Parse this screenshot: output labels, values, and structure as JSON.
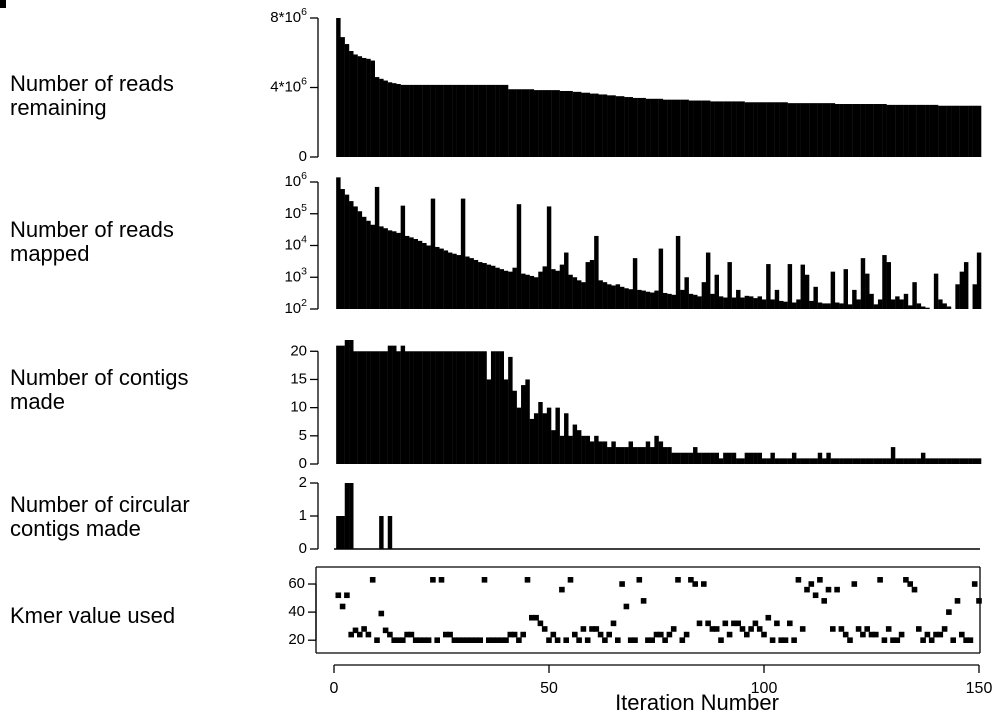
{
  "panel_label": "A",
  "colors": {
    "bars": "#000000",
    "axes": "#000000",
    "background": "#ffffff"
  },
  "chart_data": [
    {
      "type": "bar",
      "row_label": "Number of reads\nremaining",
      "ylim": [
        0,
        8000000
      ],
      "ytick_values": [
        0,
        4000000,
        8000000
      ],
      "ytick_labels": [
        {
          "base": "0",
          "exp": ""
        },
        {
          "base": "4*10",
          "exp": "6"
        },
        {
          "base": "8*10",
          "exp": "6"
        }
      ],
      "x_start": 1,
      "values": [
        8000000,
        6900000,
        6500000,
        6100000,
        5900000,
        5800000,
        5700000,
        5650000,
        5550000,
        4600000,
        4500000,
        4400000,
        4300000,
        4250000,
        4200000,
        4150000,
        4150000,
        4150000,
        4150000,
        4150000,
        4150000,
        4150000,
        4150000,
        4150000,
        4150000,
        4150000,
        4150000,
        4150000,
        4150000,
        4150000,
        4150000,
        4150000,
        4150000,
        4150000,
        4150000,
        4150000,
        4150000,
        4150000,
        4150000,
        4150000,
        3900000,
        3900000,
        3900000,
        3900000,
        3900000,
        3900000,
        3850000,
        3850000,
        3850000,
        3850000,
        3850000,
        3850000,
        3800000,
        3800000,
        3800000,
        3750000,
        3750000,
        3700000,
        3700000,
        3650000,
        3650000,
        3600000,
        3600000,
        3550000,
        3550000,
        3500000,
        3500000,
        3450000,
        3450000,
        3400000,
        3400000,
        3400000,
        3350000,
        3350000,
        3350000,
        3350000,
        3300000,
        3300000,
        3300000,
        3300000,
        3300000,
        3300000,
        3250000,
        3250000,
        3250000,
        3250000,
        3250000,
        3200000,
        3200000,
        3200000,
        3200000,
        3200000,
        3200000,
        3200000,
        3200000,
        3150000,
        3150000,
        3150000,
        3150000,
        3150000,
        3150000,
        3150000,
        3150000,
        3150000,
        3150000,
        3100000,
        3100000,
        3100000,
        3100000,
        3100000,
        3100000,
        3100000,
        3100000,
        3100000,
        3100000,
        3100000,
        3050000,
        3050000,
        3050000,
        3050000,
        3050000,
        3050000,
        3050000,
        3050000,
        3050000,
        3050000,
        3050000,
        3050000,
        3000000,
        3000000,
        3000000,
        3000000,
        3000000,
        3000000,
        3000000,
        3000000,
        3000000,
        3000000,
        3000000,
        3000000,
        2950000,
        2950000,
        2950000,
        2950000,
        2950000,
        2950000,
        2950000,
        2950000,
        2950000,
        2950000
      ]
    },
    {
      "type": "bar",
      "row_label": "Number of reads\nmapped",
      "yscale": "log",
      "ylim": [
        100,
        1000000
      ],
      "ytick_values": [
        100,
        1000,
        10000,
        100000,
        1000000
      ],
      "ytick_labels": [
        {
          "base": "10",
          "exp": "2"
        },
        {
          "base": "10",
          "exp": "3"
        },
        {
          "base": "10",
          "exp": "4"
        },
        {
          "base": "10",
          "exp": "5"
        },
        {
          "base": "10",
          "exp": "6"
        }
      ],
      "x_start": 1,
      "values": [
        1400000,
        600000,
        400000,
        250000,
        170000,
        120000,
        80000,
        60000,
        45000,
        700000,
        40000,
        35000,
        30000,
        28000,
        25000,
        180000,
        20000,
        18000,
        16000,
        14000,
        12000,
        10000,
        300000,
        9000,
        8000,
        7000,
        6000,
        5500,
        5000,
        300000,
        4500,
        4000,
        3500,
        3000,
        2800,
        2500,
        2300,
        2000,
        1800,
        1600,
        1500,
        2000,
        200000,
        1300,
        1200,
        1100,
        1000,
        1500,
        2200,
        170000,
        1800,
        1600,
        2500,
        6000,
        1200,
        1000,
        800,
        700,
        3000,
        3500,
        20000,
        800,
        700,
        600,
        550,
        600,
        500,
        450,
        420,
        4000,
        400,
        380,
        350,
        330,
        380,
        8000,
        320,
        300,
        280,
        20000,
        400,
        1000,
        300,
        280,
        250,
        700,
        6000,
        300,
        1200,
        250,
        230,
        3000,
        230,
        400,
        230,
        260,
        250,
        220,
        250,
        200,
        2600,
        200,
        400,
        180,
        170,
        2600,
        160,
        200,
        2500,
        1200,
        180,
        500,
        160,
        150,
        150,
        1500,
        160,
        150,
        1800,
        140,
        400,
        200,
        4000,
        1300,
        300,
        140,
        200,
        5000,
        3000,
        200,
        250,
        200,
        300,
        130,
        700,
        150,
        120,
        110,
        100,
        1300,
        200,
        150,
        120,
        100,
        600,
        1500,
        3000,
        100,
        600,
        6000
      ]
    },
    {
      "type": "bar",
      "row_label": "Number of contigs\nmade",
      "ylim": [
        0,
        22
      ],
      "ytick_values": [
        0,
        5,
        10,
        15,
        20
      ],
      "ytick_labels": [
        {
          "base": "0",
          "exp": ""
        },
        {
          "base": "5",
          "exp": ""
        },
        {
          "base": "10",
          "exp": ""
        },
        {
          "base": "15",
          "exp": ""
        },
        {
          "base": "20",
          "exp": ""
        }
      ],
      "x_start": 1,
      "values": [
        21,
        21,
        22,
        22,
        20,
        20,
        20,
        20,
        20,
        20,
        20,
        20,
        21,
        21,
        20,
        21,
        20,
        20,
        20,
        20,
        20,
        20,
        20,
        20,
        20,
        20,
        20,
        20,
        20,
        20,
        20,
        20,
        20,
        20,
        20,
        15,
        20,
        20,
        20,
        15,
        19,
        13,
        10,
        14,
        15,
        8,
        9,
        11,
        9,
        10,
        6,
        10,
        5,
        9,
        5,
        7,
        6,
        5,
        5,
        4,
        5,
        4,
        4,
        3,
        4,
        3,
        3,
        3,
        4,
        3,
        3,
        3,
        4,
        3,
        5,
        4,
        3,
        3,
        2,
        2,
        2,
        2,
        2,
        3,
        2,
        2,
        2,
        2,
        2,
        1,
        2,
        2,
        2,
        1,
        1,
        2,
        2,
        2,
        2,
        1,
        1,
        2,
        1,
        1,
        1,
        1,
        2,
        1,
        1,
        1,
        1,
        1,
        2,
        1,
        2,
        1,
        1,
        1,
        1,
        1,
        1,
        1,
        1,
        1,
        1,
        1,
        1,
        1,
        1,
        3,
        1,
        1,
        1,
        1,
        1,
        1,
        2,
        1,
        1,
        1,
        1,
        1,
        1,
        1,
        1,
        1,
        1,
        1,
        1,
        1
      ]
    },
    {
      "type": "bar",
      "row_label": "Number of circular\ncontigs made",
      "ylim": [
        0,
        2
      ],
      "ytick_values": [
        0,
        1,
        2
      ],
      "ytick_labels": [
        {
          "base": "0",
          "exp": ""
        },
        {
          "base": "1",
          "exp": ""
        },
        {
          "base": "2",
          "exp": ""
        }
      ],
      "x_start": 1,
      "values": [
        1,
        1,
        2,
        2,
        0,
        0,
        0,
        0,
        0,
        0,
        1,
        0,
        1,
        0,
        0,
        0,
        0,
        0,
        0,
        0,
        0,
        0,
        0,
        0,
        0,
        0,
        0,
        0,
        0,
        0,
        0,
        0,
        0,
        0,
        0,
        0,
        0,
        0,
        0,
        0,
        0,
        0,
        0,
        0,
        0,
        0,
        0,
        0,
        0,
        0,
        0,
        0,
        0,
        0,
        0,
        0,
        0,
        0,
        0,
        0,
        0,
        0,
        0,
        0,
        0,
        0,
        0,
        0,
        0,
        0,
        0,
        0,
        0,
        0,
        0,
        0,
        0,
        0,
        0,
        0,
        0,
        0,
        0,
        0,
        0,
        0,
        0,
        0,
        0,
        0,
        0,
        0,
        0,
        0,
        0,
        0,
        0,
        0,
        0,
        0,
        0,
        0,
        0,
        0,
        0,
        0,
        0,
        0,
        0,
        0,
        0,
        0,
        0,
        0,
        0,
        0,
        0,
        0,
        0,
        0,
        0,
        0,
        0,
        0,
        0,
        0,
        0,
        0,
        0,
        0,
        0,
        0,
        0,
        0,
        0,
        0,
        0,
        0,
        0,
        0,
        0,
        0,
        0,
        0,
        0,
        0,
        0,
        0,
        0,
        0
      ]
    },
    {
      "type": "scatter",
      "row_label": "Kmer value used",
      "ylim": [
        18,
        65
      ],
      "ytick_values": [
        20,
        40,
        60
      ],
      "ytick_labels": [
        {
          "base": "20",
          "exp": ""
        },
        {
          "base": "40",
          "exp": ""
        },
        {
          "base": "60",
          "exp": ""
        }
      ],
      "xlim": [
        0,
        150
      ],
      "xtick_values": [
        0,
        50,
        100,
        150
      ],
      "xtick_labels": [
        "0",
        "50",
        "100",
        "150"
      ],
      "xlabel": "Iteration Number",
      "x_start": 1,
      "values": [
        52,
        44,
        52,
        24,
        27,
        24,
        28,
        24,
        63,
        20,
        39,
        27,
        24,
        20,
        20,
        20,
        24,
        24,
        20,
        20,
        20,
        20,
        63,
        20,
        63,
        24,
        24,
        20,
        20,
        20,
        20,
        20,
        20,
        20,
        63,
        20,
        20,
        20,
        20,
        20,
        24,
        24,
        20,
        24,
        63,
        36,
        36,
        32,
        28,
        20,
        24,
        20,
        56,
        20,
        63,
        24,
        20,
        28,
        20,
        28,
        28,
        24,
        20,
        24,
        32,
        20,
        60,
        44,
        20,
        20,
        63,
        48,
        20,
        20,
        24,
        24,
        20,
        24,
        28,
        63,
        20,
        24,
        63,
        60,
        32,
        60,
        32,
        28,
        28,
        20,
        32,
        24,
        32,
        32,
        28,
        24,
        28,
        32,
        28,
        24,
        36,
        20,
        32,
        20,
        20,
        32,
        20,
        63,
        28,
        56,
        60,
        52,
        63,
        48,
        56,
        28,
        56,
        28,
        24,
        20,
        60,
        28,
        24,
        28,
        24,
        24,
        63,
        20,
        28,
        20,
        20,
        24,
        63,
        60,
        56,
        28,
        20,
        24,
        20,
        24,
        24,
        28,
        40,
        20,
        48,
        24,
        20,
        20,
        60,
        48
      ]
    }
  ]
}
